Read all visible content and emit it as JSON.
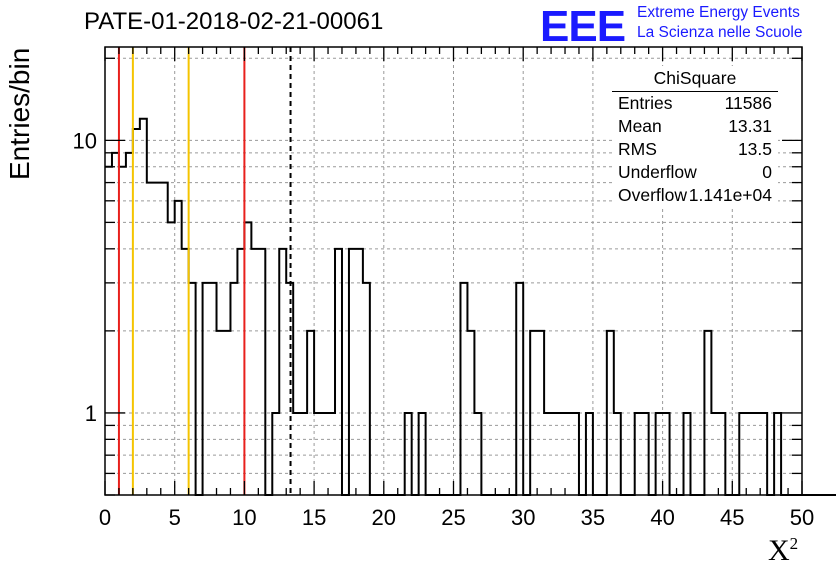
{
  "header": {
    "title": "PATE-01-2018-02-21-00061",
    "logo_text": "EEE",
    "logo_line1": "Extreme Energy Events",
    "logo_line2": "La Scienza nelle Scuole"
  },
  "statbox": {
    "title": "ChiSquare",
    "rows": [
      {
        "key": "Entries",
        "value": "11586"
      },
      {
        "key": "Mean",
        "value": "13.31"
      },
      {
        "key": "RMS",
        "value": "13.5"
      },
      {
        "key": "Underflow",
        "value": "0"
      },
      {
        "key": "Overflow",
        "value": "1.141e+04"
      }
    ]
  },
  "colors": {
    "red_line": "#e8201c",
    "yellow_line": "#f5c400",
    "logo_blue": "#1a1aff"
  },
  "chart_data": {
    "type": "bar",
    "histogram": true,
    "xlabel": "X",
    "xlabel_superscript": "2",
    "ylabel": "Entries/bin",
    "xlim": [
      0,
      50
    ],
    "ylim": [
      0.5,
      22
    ],
    "log_y": true,
    "grid": true,
    "bin_width": 0.5,
    "x_ticks": [
      "0",
      "5",
      "10",
      "15",
      "20",
      "25",
      "30",
      "35",
      "40",
      "45",
      "50"
    ],
    "y_ticks": [
      "1",
      "10"
    ],
    "values": [
      8,
      9,
      8,
      9,
      11,
      12,
      7,
      7,
      7,
      5,
      6,
      4,
      3,
      0,
      3,
      3,
      2,
      2,
      3,
      4,
      5,
      4,
      4,
      0,
      1,
      4,
      3,
      1,
      1,
      2,
      1,
      1,
      1,
      4,
      0,
      4,
      4,
      3,
      0,
      0,
      0,
      0,
      0,
      1,
      0,
      1,
      0,
      0,
      0,
      0,
      0,
      3,
      2,
      1,
      0,
      0,
      0,
      0,
      0,
      3,
      0,
      2,
      2,
      1,
      1,
      1,
      1,
      1,
      0,
      1,
      0,
      0,
      2,
      1,
      0,
      0,
      1,
      1,
      0,
      1,
      1,
      0,
      0,
      1,
      0,
      0,
      2,
      1,
      1,
      0,
      0,
      1,
      1,
      1,
      1,
      0,
      1,
      0,
      0,
      0,
      0,
      0,
      0,
      0,
      0,
      0,
      0,
      1,
      2,
      2,
      1,
      0,
      0,
      0,
      0,
      3,
      0,
      1,
      0,
      0,
      0,
      0,
      1,
      2,
      1,
      1,
      0,
      1,
      2,
      1,
      0,
      0,
      0,
      0,
      0,
      0,
      0,
      0,
      0,
      0,
      0,
      0,
      0,
      0,
      0,
      0,
      0,
      0,
      0,
      0,
      0,
      0,
      0,
      0,
      0,
      0,
      0,
      0,
      0,
      0,
      0,
      0,
      0,
      0,
      0,
      0,
      0,
      0,
      0,
      0,
      0,
      0,
      0,
      0,
      0,
      0,
      0,
      0,
      0,
      0,
      0,
      0,
      0,
      0,
      0,
      0,
      0,
      0,
      0,
      0,
      0,
      0,
      0,
      0,
      0,
      0
    ],
    "vertical_lines": [
      {
        "x": 1,
        "color": "red"
      },
      {
        "x": 2,
        "color": "yellow"
      },
      {
        "x": 6,
        "color": "yellow"
      },
      {
        "x": 10,
        "color": "red"
      },
      {
        "x": 13.31,
        "color": "black",
        "style": "dashed"
      }
    ]
  }
}
